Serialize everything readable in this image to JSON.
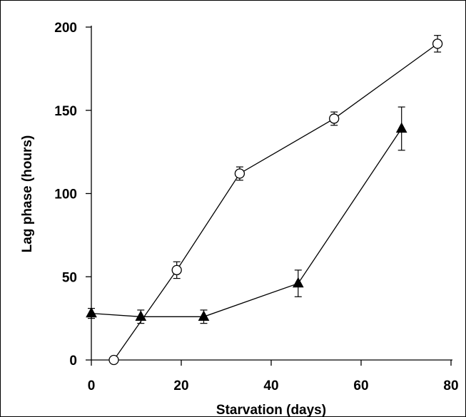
{
  "chart_data": {
    "type": "line",
    "xlabel": "Starvation (days)",
    "ylabel": "Lag phase (hours)",
    "xlim": [
      0,
      80
    ],
    "ylim": [
      0,
      200
    ],
    "xticks": [
      0,
      20,
      40,
      60,
      80
    ],
    "yticks": [
      0,
      50,
      100,
      150,
      200
    ],
    "grid": false,
    "series": [
      {
        "marker": "open-circle",
        "color": "#000000",
        "points": [
          {
            "x": 5,
            "y": 0,
            "err": 0
          },
          {
            "x": 19,
            "y": 54,
            "err": 5
          },
          {
            "x": 33,
            "y": 112,
            "err": 4
          },
          {
            "x": 54,
            "y": 145,
            "err": 4
          },
          {
            "x": 77,
            "y": 190,
            "err": 5
          }
        ]
      },
      {
        "marker": "filled-triangle",
        "color": "#000000",
        "points": [
          {
            "x": 0,
            "y": 28,
            "err": 3
          },
          {
            "x": 11,
            "y": 26,
            "err": 4
          },
          {
            "x": 25,
            "y": 26,
            "err": 4
          },
          {
            "x": 46,
            "y": 46,
            "err": 8
          },
          {
            "x": 69,
            "y": 139,
            "err": 13
          }
        ]
      }
    ]
  }
}
